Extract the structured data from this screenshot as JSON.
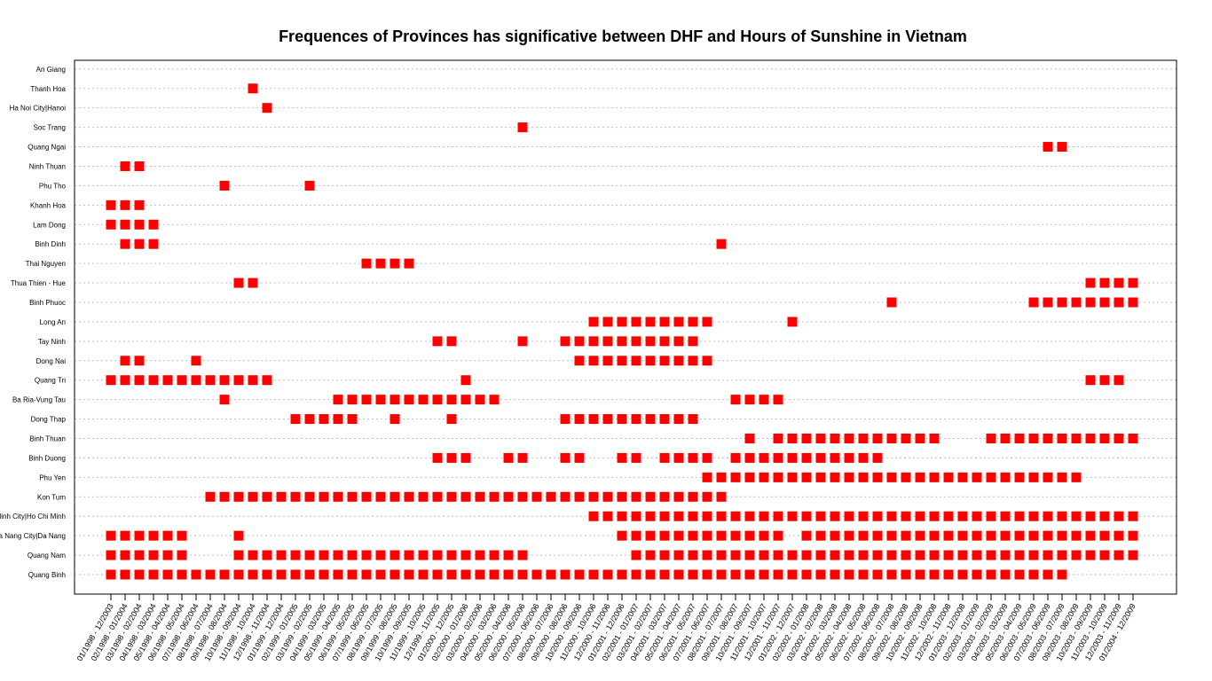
{
  "chart_data": {
    "type": "scatter",
    "title": "Frequences of Provinces has significative between DHF and Hours of Sunshine in Vietnam",
    "marker": "square",
    "marker_color": "#ff0000",
    "grid": "horizontal dotted",
    "x_labels": [
      "01/1998 - 12/2003",
      "02/1998 - 01/2004",
      "03/1998 - 02/2004",
      "04/1998 - 03/2004",
      "05/1998 - 04/2004",
      "06/1998 - 05/2004",
      "07/1998 - 06/2004",
      "08/1998 - 07/2004",
      "09/1998 - 08/2004",
      "10/1998 - 09/2004",
      "11/1998 - 10/2004",
      "12/1998 - 11/2004",
      "01/1999 - 12/2004",
      "02/1999 - 01/2005",
      "03/1999 - 02/2005",
      "04/1999 - 03/2005",
      "05/1999 - 04/2005",
      "06/1999 - 05/2005",
      "07/1999 - 06/2005",
      "08/1999 - 07/2005",
      "09/1999 - 08/2005",
      "10/1999 - 09/2005",
      "11/1999 - 10/2005",
      "12/1999 - 11/2005",
      "01/2000 - 12/2005",
      "02/2000 - 01/2006",
      "03/2000 - 02/2006",
      "04/2000 - 03/2006",
      "05/2000 - 04/2006",
      "06/2000 - 05/2006",
      "07/2000 - 06/2006",
      "08/2000 - 07/2006",
      "09/2000 - 08/2006",
      "10/2000 - 09/2006",
      "11/2000 - 10/2006",
      "12/2000 - 11/2006",
      "01/2001 - 12/2006",
      "02/2001 - 01/2007",
      "03/2001 - 02/2007",
      "04/2001 - 03/2007",
      "05/2001 - 04/2007",
      "06/2001 - 05/2007",
      "07/2001 - 06/2007",
      "08/2001 - 07/2007",
      "09/2001 - 08/2007",
      "10/2001 - 09/2007",
      "11/2001 - 10/2007",
      "12/2001 - 11/2007",
      "01/2002 - 12/2007",
      "02/2002 - 01/2008",
      "03/2002 - 02/2008",
      "04/2002 - 03/2008",
      "05/2002 - 04/2008",
      "06/2002 - 05/2008",
      "07/2002 - 06/2008",
      "08/2002 - 07/2008",
      "09/2002 - 08/2008",
      "10/2002 - 09/2008",
      "11/2002 - 10/2008",
      "12/2002 - 11/2008",
      "01/2003 - 12/2008",
      "02/2003 - 01/2009",
      "03/2003 - 02/2009",
      "04/2003 - 03/2009",
      "05/2003 - 04/2009",
      "06/2003 - 05/2009",
      "07/2003 - 06/2009",
      "08/2003 - 07/2009",
      "09/2003 - 08/2009",
      "10/2003 - 09/2009",
      "11/2003 - 10/2009",
      "12/2003 - 11/2009",
      "01/2004 - 12/2009"
    ],
    "provinces": [
      "Quang Binh",
      "Quang Nam",
      "Da Nang City|Da Nang",
      "Ho Chi Minh City|Ho Chi Minh",
      "Kon Tum",
      "Phu Yen",
      "Binh Duong",
      "Binh Thuan",
      "Dong Thap",
      "Ba Ria-Vung Tau",
      "Quang Tri",
      "Dong Nai",
      "Tay Ninh",
      "Long An",
      "Binh Phuoc",
      "Thua Thien - Hue",
      "Thai Nguyen",
      "Binh Dinh",
      "Lam Dong",
      "Khanh Hoa",
      "Phu Tho",
      "Ninh Thuan",
      "Quang Ngai",
      "Soc Trang",
      "Ha Noi City|Hanoi",
      "Thanh Hoa",
      "An Giang"
    ],
    "points_by_province": {
      "Quang Binh": [
        1,
        2,
        3,
        4,
        5,
        6,
        7,
        8,
        9,
        10,
        11,
        12,
        13,
        14,
        15,
        16,
        17,
        18,
        19,
        20,
        21,
        22,
        23,
        24,
        25,
        26,
        27,
        28,
        29,
        30,
        31,
        32,
        33,
        34,
        35,
        36,
        37,
        38,
        39,
        40,
        41,
        42,
        43,
        44,
        45,
        46,
        47,
        48,
        49,
        50,
        51,
        52,
        53,
        54,
        55,
        56,
        57,
        58,
        59,
        60,
        61,
        62,
        63,
        64,
        65,
        66,
        67,
        68
      ],
      "Quang Nam": [
        1,
        2,
        3,
        4,
        5,
        6,
        10,
        11,
        12,
        13,
        14,
        15,
        16,
        17,
        18,
        19,
        20,
        21,
        22,
        23,
        24,
        25,
        26,
        27,
        28,
        29,
        30,
        38,
        39,
        40,
        41,
        42,
        43,
        44,
        45,
        46,
        47,
        48,
        49,
        50,
        51,
        52,
        53,
        54,
        55,
        56,
        57,
        58,
        59,
        60,
        61,
        62,
        63,
        64,
        65,
        66,
        67,
        68,
        69,
        70,
        71,
        72,
        73
      ],
      "Da Nang City|Da Nang": [
        1,
        2,
        3,
        4,
        5,
        6,
        10,
        37,
        38,
        39,
        40,
        41,
        42,
        43,
        44,
        45,
        46,
        47,
        48,
        50,
        51,
        52,
        53,
        54,
        55,
        56,
        57,
        58,
        59,
        60,
        61,
        62,
        63,
        64,
        65,
        66,
        67,
        68,
        69,
        70,
        71,
        72,
        73
      ],
      "Ho Chi Minh City|Ho Chi Minh": [
        35,
        36,
        37,
        38,
        39,
        40,
        41,
        42,
        43,
        44,
        45,
        46,
        47,
        48,
        49,
        50,
        51,
        52,
        53,
        54,
        55,
        56,
        57,
        58,
        59,
        60,
        61,
        62,
        63,
        64,
        65,
        66,
        67,
        68,
        69,
        70,
        71,
        72,
        73
      ],
      "Kon Tum": [
        8,
        9,
        10,
        11,
        12,
        13,
        14,
        15,
        16,
        17,
        18,
        19,
        20,
        21,
        22,
        23,
        24,
        25,
        26,
        27,
        28,
        29,
        30,
        31,
        32,
        33,
        34,
        35,
        36,
        37,
        38,
        39,
        40,
        41,
        42,
        43,
        44
      ],
      "Phu Yen": [
        43,
        44,
        45,
        46,
        47,
        48,
        49,
        50,
        51,
        52,
        53,
        54,
        55,
        56,
        57,
        58,
        59,
        60,
        61,
        62,
        63,
        64,
        65,
        66,
        67,
        68,
        69
      ],
      "Binh Duong": [
        24,
        25,
        26,
        29,
        30,
        33,
        34,
        37,
        38,
        40,
        41,
        42,
        43,
        45,
        46,
        47,
        48,
        49,
        50,
        51,
        52,
        53,
        54,
        55
      ],
      "Binh Thuan": [
        46,
        48,
        49,
        50,
        51,
        52,
        53,
        54,
        55,
        56,
        57,
        58,
        59,
        63,
        64,
        65,
        66,
        67,
        68,
        69,
        70,
        71,
        72,
        73
      ],
      "Dong Thap": [
        14,
        15,
        16,
        17,
        18,
        21,
        25,
        33,
        34,
        35,
        36,
        37,
        38,
        39,
        40,
        41,
        42
      ],
      "Ba Ria-Vung Tau": [
        9,
        17,
        18,
        19,
        20,
        21,
        22,
        23,
        24,
        25,
        26,
        27,
        28,
        45,
        46,
        47,
        48
      ],
      "Quang Tri": [
        1,
        2,
        3,
        4,
        5,
        6,
        7,
        8,
        9,
        10,
        11,
        12,
        26,
        70,
        71,
        72
      ],
      "Dong Nai": [
        2,
        3,
        7,
        34,
        35,
        36,
        37,
        38,
        39,
        40,
        41,
        42,
        43
      ],
      "Tay Ninh": [
        24,
        25,
        30,
        33,
        34,
        35,
        36,
        37,
        38,
        39,
        40,
        41,
        42
      ],
      "Long An": [
        35,
        36,
        37,
        38,
        39,
        40,
        41,
        42,
        43,
        49
      ],
      "Binh Phuoc": [
        56,
        66,
        67,
        68,
        69,
        70,
        71,
        72,
        73
      ],
      "Thua Thien - Hue": [
        10,
        11,
        70,
        71,
        72,
        73
      ],
      "Thai Nguyen": [
        19,
        20,
        21,
        22
      ],
      "Binh Dinh": [
        2,
        3,
        4,
        44
      ],
      "Lam Dong": [
        1,
        2,
        3,
        4
      ],
      "Khanh Hoa": [
        1,
        2,
        3
      ],
      "Phu Tho": [
        9,
        15
      ],
      "Ninh Thuan": [
        2,
        3
      ],
      "Quang Ngai": [
        67,
        68
      ],
      "Soc Trang": [
        30
      ],
      "Ha Noi City|Hanoi": [
        12
      ],
      "Thanh Hoa": [
        11
      ],
      "An Giang": []
    }
  }
}
